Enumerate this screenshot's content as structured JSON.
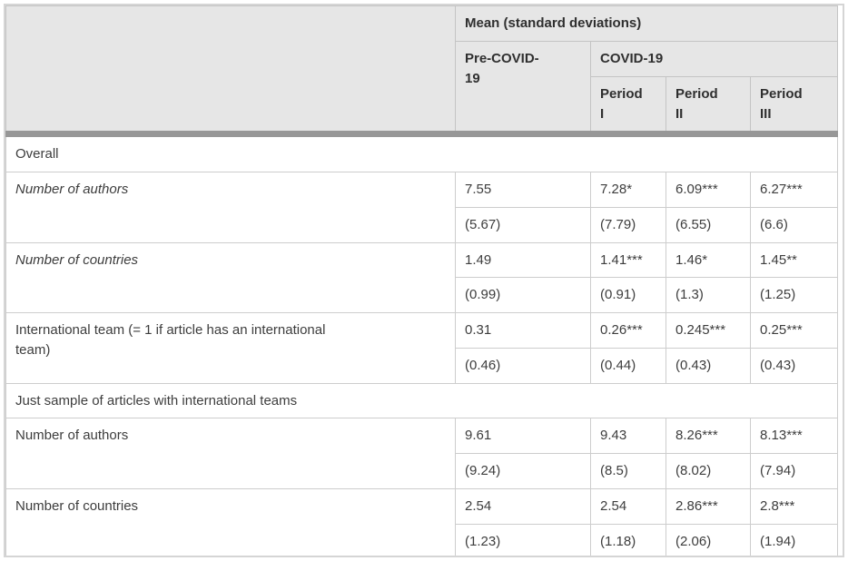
{
  "header": {
    "group_title": "Mean (standard deviations)",
    "pre_covid": "Pre-COVID-19",
    "covid": "COVID-19",
    "periods": [
      "Period I",
      "Period II",
      "Period III"
    ]
  },
  "colors": {
    "header_bg": "#e6e6e6",
    "header_border": "#c4c4c4",
    "body_border": "#cdcdcd",
    "divider_bar": "#979797",
    "frame_border": "#d5d5d5",
    "header_text": "#2f2f2f",
    "body_text": "#3d3d3d"
  },
  "sections": [
    {
      "title": "Overall",
      "rows": [
        {
          "label": "Number of authors",
          "italic": true,
          "means": [
            "7.55",
            "7.28*",
            "6.09***",
            "6.27***"
          ],
          "sds": [
            "(5.67)",
            "(7.79)",
            "(6.55)",
            "(6.6)"
          ]
        },
        {
          "label": "Number of countries",
          "italic": true,
          "means": [
            "1.49",
            "1.41***",
            "1.46*",
            "1.45**"
          ],
          "sds": [
            "(0.99)",
            "(0.91)",
            "(1.3)",
            "(1.25)"
          ]
        },
        {
          "label": "International team (= 1 if article has an international team)",
          "italic": false,
          "means": [
            "0.31",
            "0.26***",
            "0.245***",
            "0.25***"
          ],
          "sds": [
            "(0.46)",
            "(0.44)",
            "(0.43)",
            "(0.43)"
          ]
        }
      ]
    },
    {
      "title": "Just sample of articles with international teams",
      "rows": [
        {
          "label": "Number of authors",
          "italic": false,
          "means": [
            "9.61",
            "9.43",
            "8.26***",
            "8.13***"
          ],
          "sds": [
            "(9.24)",
            "(8.5)",
            "(8.02)",
            "(7.94)"
          ]
        },
        {
          "label": "Number of countries",
          "italic": false,
          "means": [
            "2.54",
            "2.54",
            "2.86***",
            "2.8***"
          ],
          "sds": [
            "(1.23)",
            "(1.18)",
            "(2.06)",
            "(1.94)"
          ]
        }
      ]
    }
  ]
}
